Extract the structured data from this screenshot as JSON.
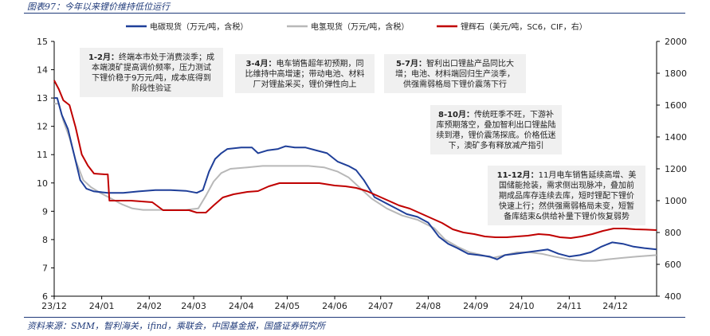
{
  "figure": {
    "title": "图表97：今年以来锂价维持低位运行",
    "source": "资料来源：SMM，智利海关，ifind，乘联会，中国基金报，国盛证券研究所"
  },
  "chart_data": {
    "type": "line",
    "x_ticks": [
      "23/12",
      "24/01",
      "24/02",
      "24/03",
      "24/04",
      "24/05",
      "24/06",
      "24/07",
      "24/08",
      "24/09",
      "24/10",
      "24/11",
      "24/12"
    ],
    "x_range": [
      "2023-12-01",
      "2024-12-28"
    ],
    "y_left": {
      "range": [
        6,
        15
      ],
      "ticks": [
        6,
        7,
        8,
        9,
        10,
        11,
        12,
        13,
        14,
        15
      ]
    },
    "y_right": {
      "range": [
        400,
        2000
      ],
      "ticks": [
        400,
        600,
        800,
        1000,
        1200,
        1400,
        1600,
        1800,
        2000
      ]
    },
    "grid": false,
    "legend_position": "top",
    "series": [
      {
        "name": "电碳现货（万元/吨，含税）",
        "axis": "left",
        "color": "#1f3f99",
        "points": [
          [
            "2023-12-01",
            13.0
          ],
          [
            "2023-12-03",
            13.0
          ],
          [
            "2023-12-06",
            12.4
          ],
          [
            "2023-12-10",
            11.9
          ],
          [
            "2023-12-14",
            11.0
          ],
          [
            "2023-12-18",
            10.1
          ],
          [
            "2023-12-22",
            9.8
          ],
          [
            "2023-12-27",
            9.7
          ],
          [
            "2024-01-05",
            9.65
          ],
          [
            "2024-01-15",
            9.65
          ],
          [
            "2024-01-25",
            9.7
          ],
          [
            "2024-02-05",
            9.75
          ],
          [
            "2024-02-15",
            9.75
          ],
          [
            "2024-02-25",
            9.72
          ],
          [
            "2024-03-03",
            9.65
          ],
          [
            "2024-03-07",
            9.75
          ],
          [
            "2024-03-11",
            10.4
          ],
          [
            "2024-03-15",
            10.85
          ],
          [
            "2024-03-19",
            11.05
          ],
          [
            "2024-03-23",
            11.2
          ],
          [
            "2024-04-01",
            11.25
          ],
          [
            "2024-04-08",
            11.25
          ],
          [
            "2024-04-12",
            11.05
          ],
          [
            "2024-04-18",
            11.15
          ],
          [
            "2024-04-25",
            11.2
          ],
          [
            "2024-04-30",
            11.3
          ],
          [
            "2024-05-06",
            11.25
          ],
          [
            "2024-05-13",
            11.25
          ],
          [
            "2024-05-20",
            11.15
          ],
          [
            "2024-05-27",
            11.05
          ],
          [
            "2024-06-03",
            10.75
          ],
          [
            "2024-06-10",
            10.6
          ],
          [
            "2024-06-15",
            10.45
          ],
          [
            "2024-06-20",
            10.1
          ],
          [
            "2024-06-27",
            9.5
          ],
          [
            "2024-07-04",
            9.3
          ],
          [
            "2024-07-11",
            9.1
          ],
          [
            "2024-07-18",
            8.9
          ],
          [
            "2024-07-25",
            8.8
          ],
          [
            "2024-08-01",
            8.6
          ],
          [
            "2024-08-08",
            8.1
          ],
          [
            "2024-08-14",
            7.85
          ],
          [
            "2024-08-20",
            7.7
          ],
          [
            "2024-08-27",
            7.5
          ],
          [
            "2024-09-03",
            7.45
          ],
          [
            "2024-09-10",
            7.4
          ],
          [
            "2024-09-15",
            7.3
          ],
          [
            "2024-09-20",
            7.45
          ],
          [
            "2024-09-27",
            7.5
          ],
          [
            "2024-10-04",
            7.55
          ],
          [
            "2024-10-11",
            7.6
          ],
          [
            "2024-10-18",
            7.65
          ],
          [
            "2024-10-25",
            7.5
          ],
          [
            "2024-11-01",
            7.4
          ],
          [
            "2024-11-08",
            7.45
          ],
          [
            "2024-11-15",
            7.55
          ],
          [
            "2024-11-22",
            7.75
          ],
          [
            "2024-11-29",
            7.9
          ],
          [
            "2024-12-06",
            7.85
          ],
          [
            "2024-12-13",
            7.75
          ],
          [
            "2024-12-20",
            7.7
          ],
          [
            "2024-12-28",
            7.65
          ]
        ]
      },
      {
        "name": "电氢现货（万元/吨，含税）",
        "axis": "left",
        "color": "#b8b8b8",
        "points": [
          [
            "2023-12-01",
            12.8
          ],
          [
            "2023-12-04",
            12.8
          ],
          [
            "2023-12-07",
            12.2
          ],
          [
            "2023-12-11",
            11.6
          ],
          [
            "2023-12-15",
            10.8
          ],
          [
            "2023-12-20",
            10.1
          ],
          [
            "2023-12-25",
            9.85
          ],
          [
            "2023-12-31",
            9.65
          ],
          [
            "2024-01-07",
            9.45
          ],
          [
            "2024-01-14",
            9.25
          ],
          [
            "2024-01-21",
            9.1
          ],
          [
            "2024-01-28",
            9.05
          ],
          [
            "2024-02-10",
            9.05
          ],
          [
            "2024-02-25",
            9.05
          ],
          [
            "2024-03-04",
            9.1
          ],
          [
            "2024-03-09",
            9.55
          ],
          [
            "2024-03-14",
            10.05
          ],
          [
            "2024-03-19",
            10.35
          ],
          [
            "2024-03-25",
            10.5
          ],
          [
            "2024-04-05",
            10.55
          ],
          [
            "2024-04-15",
            10.6
          ],
          [
            "2024-04-25",
            10.6
          ],
          [
            "2024-05-05",
            10.6
          ],
          [
            "2024-05-15",
            10.6
          ],
          [
            "2024-05-25",
            10.55
          ],
          [
            "2024-06-03",
            10.4
          ],
          [
            "2024-06-10",
            10.2
          ],
          [
            "2024-06-18",
            9.8
          ],
          [
            "2024-06-25",
            9.45
          ],
          [
            "2024-07-05",
            9.1
          ],
          [
            "2024-07-15",
            8.85
          ],
          [
            "2024-07-25",
            8.7
          ],
          [
            "2024-08-05",
            8.4
          ],
          [
            "2024-08-12",
            8.0
          ],
          [
            "2024-08-20",
            7.75
          ],
          [
            "2024-08-28",
            7.55
          ],
          [
            "2024-09-05",
            7.45
          ],
          [
            "2024-09-12",
            7.35
          ],
          [
            "2024-09-20",
            7.45
          ],
          [
            "2024-09-28",
            7.55
          ],
          [
            "2024-10-06",
            7.55
          ],
          [
            "2024-10-14",
            7.5
          ],
          [
            "2024-10-22",
            7.4
          ],
          [
            "2024-11-01",
            7.3
          ],
          [
            "2024-11-10",
            7.25
          ],
          [
            "2024-11-18",
            7.25
          ],
          [
            "2024-11-26",
            7.3
          ],
          [
            "2024-12-05",
            7.35
          ],
          [
            "2024-12-15",
            7.4
          ],
          [
            "2024-12-28",
            7.45
          ]
        ]
      },
      {
        "name": "锂辉石（美元/吨，SC6，CIF，右）",
        "axis": "right",
        "color": "#c00000",
        "points": [
          [
            "2023-12-01",
            1755
          ],
          [
            "2023-12-04",
            1700
          ],
          [
            "2023-12-07",
            1630
          ],
          [
            "2023-12-11",
            1600
          ],
          [
            "2023-12-15",
            1460
          ],
          [
            "2023-12-19",
            1290
          ],
          [
            "2023-12-23",
            1220
          ],
          [
            "2023-12-27",
            1170
          ],
          [
            "2024-01-03",
            1165
          ],
          [
            "2024-01-05",
            1165
          ],
          [
            "2024-01-06",
            1000
          ],
          [
            "2024-01-20",
            1000
          ],
          [
            "2024-02-03",
            990
          ],
          [
            "2024-02-10",
            940
          ],
          [
            "2024-02-20",
            940
          ],
          [
            "2024-02-27",
            940
          ],
          [
            "2024-03-03",
            925
          ],
          [
            "2024-03-09",
            925
          ],
          [
            "2024-03-14",
            970
          ],
          [
            "2024-03-20",
            1020
          ],
          [
            "2024-03-27",
            1040
          ],
          [
            "2024-04-05",
            1055
          ],
          [
            "2024-04-12",
            1060
          ],
          [
            "2024-04-19",
            1090
          ],
          [
            "2024-04-26",
            1110
          ],
          [
            "2024-05-03",
            1110
          ],
          [
            "2024-05-12",
            1110
          ],
          [
            "2024-05-22",
            1110
          ],
          [
            "2024-06-01",
            1095
          ],
          [
            "2024-06-08",
            1090
          ],
          [
            "2024-06-15",
            1080
          ],
          [
            "2024-06-22",
            1060
          ],
          [
            "2024-06-29",
            1030
          ],
          [
            "2024-07-06",
            1000
          ],
          [
            "2024-07-13",
            970
          ],
          [
            "2024-07-20",
            950
          ],
          [
            "2024-07-27",
            920
          ],
          [
            "2024-08-03",
            890
          ],
          [
            "2024-08-10",
            860
          ],
          [
            "2024-08-17",
            820
          ],
          [
            "2024-08-24",
            800
          ],
          [
            "2024-08-31",
            790
          ],
          [
            "2024-09-07",
            775
          ],
          [
            "2024-09-14",
            770
          ],
          [
            "2024-09-21",
            770
          ],
          [
            "2024-09-28",
            775
          ],
          [
            "2024-10-05",
            780
          ],
          [
            "2024-10-12",
            790
          ],
          [
            "2024-10-19",
            785
          ],
          [
            "2024-10-26",
            770
          ],
          [
            "2024-11-02",
            765
          ],
          [
            "2024-11-09",
            775
          ],
          [
            "2024-11-16",
            790
          ],
          [
            "2024-11-23",
            810
          ],
          [
            "2024-11-30",
            825
          ],
          [
            "2024-12-07",
            825
          ],
          [
            "2024-12-14",
            820
          ],
          [
            "2024-12-21",
            818
          ],
          [
            "2024-12-28",
            815
          ]
        ]
      }
    ],
    "annotations": [
      {
        "text": "1-2月：终端本市处于消费淡季；成本端澳矿提高调价频率，压力测试下锂价稳于9万元/吨，成本底得到阶段性验证"
      },
      {
        "text": "3-4月：电车销售超年初预期，同比维持中高增速；带动电池、材料厂对锂盐采买，锂价弹性向上"
      },
      {
        "text": "5-7月：智利出口锂盐产品同比大增；电池、材料端回归生产淡季，供强需弱格局下锂价震荡下行"
      },
      {
        "text": "8-10月：传统旺季不旺，下游补库预期落空，叠加智利出口锂盐陆续到港，锂价震荡探底。价格低迷下，澳矿多有释放减产指引"
      },
      {
        "text": "11-12月：11月电车销售延续高增、美国储能抢装，需求侧出现脉冲，叠加前期成品库存连续去库，短时锂配下锂价快速上行；然供强需弱格局未变，短暂备库结束&供给补量下锂价恢复弱势"
      }
    ]
  }
}
